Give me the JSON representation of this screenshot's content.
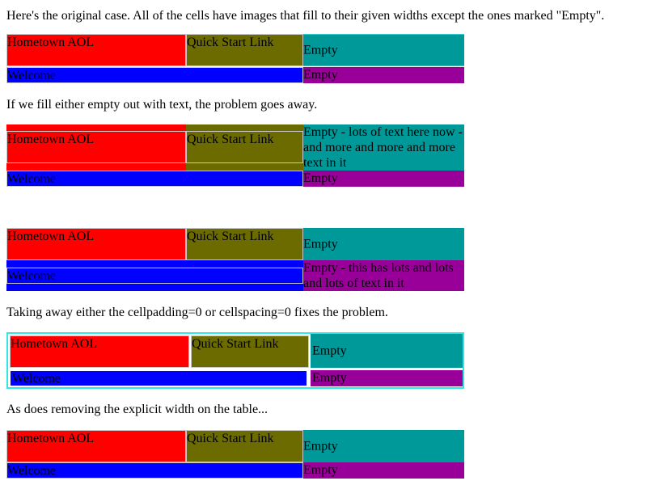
{
  "intro": "Here's the original case. All of the cells have images that fill to their given widths except the ones marked \"Empty\".",
  "note_fill": "If we fill either empty out with text, the problem goes away.",
  "note_padding": "Taking away either the cellpadding=0 or cellspacing=0 fixes the problem.",
  "note_width": "As does removing the explicit width on the table...",
  "labels": {
    "hometown": "Hometown AOL",
    "quickstart": "Quick Start Link",
    "welcome": "Welcome",
    "empty": "Empty"
  },
  "long_text_1": "Empty - lots of text here now - and more and more and more text in it",
  "long_text_2": "Empty - this has lots and lots and lots of text in it",
  "colors": {
    "red": "#ff0000",
    "olive": "#6b6b00",
    "teal": "#009999",
    "blue": "#0000ff",
    "purple": "#990099",
    "cyan_border": "#33e6e6"
  }
}
